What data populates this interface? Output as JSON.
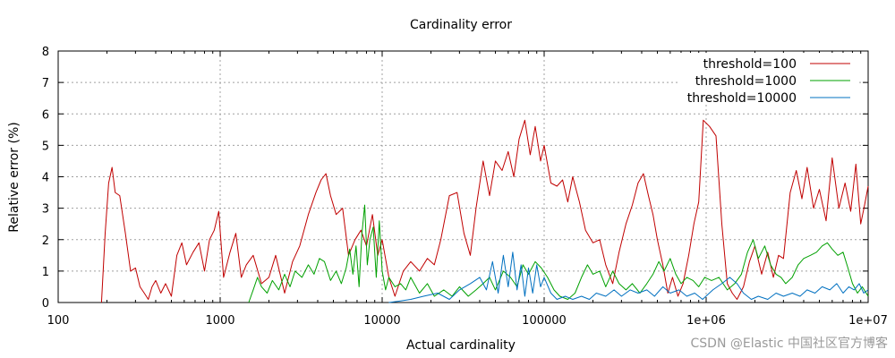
{
  "chart_data": {
    "type": "line",
    "title": "Cardinality error",
    "xlabel": "Actual cardinality",
    "ylabel": "Relative error (%)",
    "xscale": "log",
    "xlim": [
      100,
      10000000
    ],
    "ylim": [
      0,
      8
    ],
    "xticks": [
      100,
      1000,
      10000,
      100000,
      1000000,
      10000000
    ],
    "xtick_labels": [
      "100",
      "1000",
      "10000",
      "100000",
      "1e+06",
      "1e+07"
    ],
    "yticks": [
      0,
      1,
      2,
      3,
      4,
      5,
      6,
      7,
      8
    ],
    "grid": true,
    "legend_position": "top-right",
    "series": [
      {
        "name": "threshold=100",
        "color": "#c00000",
        "points": [
          [
            185,
            0
          ],
          [
            195,
            2.2
          ],
          [
            205,
            3.8
          ],
          [
            215,
            4.3
          ],
          [
            225,
            3.5
          ],
          [
            240,
            3.4
          ],
          [
            260,
            2.2
          ],
          [
            280,
            1.0
          ],
          [
            300,
            1.1
          ],
          [
            320,
            0.5
          ],
          [
            340,
            0.3
          ],
          [
            360,
            0.1
          ],
          [
            380,
            0.5
          ],
          [
            400,
            0.7
          ],
          [
            430,
            0.3
          ],
          [
            460,
            0.6
          ],
          [
            500,
            0.2
          ],
          [
            540,
            1.5
          ],
          [
            580,
            1.9
          ],
          [
            620,
            1.2
          ],
          [
            680,
            1.6
          ],
          [
            740,
            1.9
          ],
          [
            800,
            1.0
          ],
          [
            860,
            2.0
          ],
          [
            920,
            2.3
          ],
          [
            980,
            2.9
          ],
          [
            1050,
            0.8
          ],
          [
            1150,
            1.6
          ],
          [
            1250,
            2.2
          ],
          [
            1350,
            0.8
          ],
          [
            1450,
            1.2
          ],
          [
            1600,
            1.5
          ],
          [
            1800,
            0.6
          ],
          [
            2000,
            0.8
          ],
          [
            2200,
            1.5
          ],
          [
            2500,
            0.3
          ],
          [
            2800,
            1.3
          ],
          [
            3100,
            1.8
          ],
          [
            3500,
            2.8
          ],
          [
            3900,
            3.5
          ],
          [
            4200,
            3.9
          ],
          [
            4500,
            4.1
          ],
          [
            4800,
            3.4
          ],
          [
            5200,
            2.8
          ],
          [
            5700,
            3.0
          ],
          [
            6200,
            1.5
          ],
          [
            6800,
            2.0
          ],
          [
            7400,
            2.3
          ],
          [
            8000,
            1.8
          ],
          [
            8700,
            2.8
          ],
          [
            9400,
            1.5
          ],
          [
            10000,
            2.0
          ],
          [
            11000,
            0.8
          ],
          [
            12000,
            0.2
          ],
          [
            13500,
            1.0
          ],
          [
            15000,
            1.3
          ],
          [
            17000,
            1.0
          ],
          [
            19000,
            1.4
          ],
          [
            21000,
            1.2
          ],
          [
            23000,
            2.0
          ],
          [
            26000,
            3.4
          ],
          [
            29000,
            3.5
          ],
          [
            32000,
            2.2
          ],
          [
            35000,
            1.5
          ],
          [
            38000,
            3.0
          ],
          [
            42000,
            4.5
          ],
          [
            46000,
            3.4
          ],
          [
            50000,
            4.5
          ],
          [
            55000,
            4.2
          ],
          [
            60000,
            4.8
          ],
          [
            65000,
            4.0
          ],
          [
            70000,
            5.2
          ],
          [
            76000,
            5.8
          ],
          [
            82000,
            4.7
          ],
          [
            88000,
            5.6
          ],
          [
            95000,
            4.5
          ],
          [
            100000,
            5.0
          ],
          [
            110000,
            3.8
          ],
          [
            120000,
            3.7
          ],
          [
            130000,
            3.9
          ],
          [
            140000,
            3.2
          ],
          [
            150000,
            4.0
          ],
          [
            165000,
            3.2
          ],
          [
            180000,
            2.3
          ],
          [
            200000,
            1.9
          ],
          [
            220000,
            2.0
          ],
          [
            240000,
            1.2
          ],
          [
            265000,
            0.6
          ],
          [
            290000,
            1.6
          ],
          [
            320000,
            2.5
          ],
          [
            350000,
            3.1
          ],
          [
            380000,
            3.8
          ],
          [
            410000,
            4.1
          ],
          [
            440000,
            3.4
          ],
          [
            470000,
            2.8
          ],
          [
            500000,
            2.0
          ],
          [
            540000,
            1.2
          ],
          [
            580000,
            0.3
          ],
          [
            620000,
            0.8
          ],
          [
            670000,
            0.2
          ],
          [
            720000,
            0.6
          ],
          [
            780000,
            1.5
          ],
          [
            840000,
            2.5
          ],
          [
            900000,
            3.2
          ],
          [
            960000,
            5.8
          ],
          [
            1050000,
            5.6
          ],
          [
            1150000,
            5.3
          ],
          [
            1250000,
            2.5
          ],
          [
            1350000,
            0.6
          ],
          [
            1450000,
            0.3
          ],
          [
            1550000,
            0.1
          ],
          [
            1700000,
            0.5
          ],
          [
            1850000,
            1.3
          ],
          [
            2000000,
            1.8
          ],
          [
            2200000,
            0.9
          ],
          [
            2400000,
            1.6
          ],
          [
            2600000,
            0.8
          ],
          [
            2800000,
            1.5
          ],
          [
            3000000,
            1.4
          ],
          [
            3300000,
            3.5
          ],
          [
            3600000,
            4.2
          ],
          [
            3900000,
            3.3
          ],
          [
            4200000,
            4.3
          ],
          [
            4600000,
            3.0
          ],
          [
            5000000,
            3.6
          ],
          [
            5500000,
            2.6
          ],
          [
            6000000,
            4.6
          ],
          [
            6600000,
            3.0
          ],
          [
            7200000,
            3.8
          ],
          [
            7800000,
            2.9
          ],
          [
            8400000,
            4.4
          ],
          [
            9000000,
            2.5
          ],
          [
            9500000,
            3.1
          ],
          [
            10000000,
            3.7
          ]
        ]
      },
      {
        "name": "threshold=1000",
        "color": "#00a000",
        "points": [
          [
            1500,
            0
          ],
          [
            1600,
            0.4
          ],
          [
            1700,
            0.8
          ],
          [
            1800,
            0.5
          ],
          [
            1950,
            0.3
          ],
          [
            2100,
            0.7
          ],
          [
            2300,
            0.4
          ],
          [
            2500,
            0.9
          ],
          [
            2700,
            0.5
          ],
          [
            2900,
            1.0
          ],
          [
            3200,
            0.8
          ],
          [
            3500,
            1.2
          ],
          [
            3800,
            0.9
          ],
          [
            4100,
            1.4
          ],
          [
            4400,
            1.3
          ],
          [
            4800,
            0.7
          ],
          [
            5200,
            1.0
          ],
          [
            5600,
            0.6
          ],
          [
            6000,
            1.1
          ],
          [
            6300,
            1.7
          ],
          [
            6600,
            0.9
          ],
          [
            6900,
            1.8
          ],
          [
            7200,
            0.5
          ],
          [
            7500,
            2.2
          ],
          [
            7800,
            3.1
          ],
          [
            8100,
            1.2
          ],
          [
            8400,
            2.0
          ],
          [
            8800,
            2.4
          ],
          [
            9200,
            0.8
          ],
          [
            9600,
            2.6
          ],
          [
            10000,
            1.0
          ],
          [
            10500,
            0.4
          ],
          [
            11000,
            0.8
          ],
          [
            12000,
            0.5
          ],
          [
            13000,
            0.6
          ],
          [
            14000,
            0.4
          ],
          [
            15000,
            0.8
          ],
          [
            17000,
            0.3
          ],
          [
            19000,
            0.6
          ],
          [
            21000,
            0.2
          ],
          [
            24000,
            0.4
          ],
          [
            27000,
            0.2
          ],
          [
            30000,
            0.5
          ],
          [
            34000,
            0.2
          ],
          [
            38000,
            0.4
          ],
          [
            42000,
            0.6
          ],
          [
            46000,
            0.8
          ],
          [
            50000,
            0.4
          ],
          [
            56000,
            1.0
          ],
          [
            62000,
            0.8
          ],
          [
            68000,
            0.5
          ],
          [
            74000,
            1.2
          ],
          [
            80000,
            0.9
          ],
          [
            88000,
            1.3
          ],
          [
            96000,
            1.1
          ],
          [
            105000,
            0.8
          ],
          [
            115000,
            0.4
          ],
          [
            125000,
            0.2
          ],
          [
            140000,
            0.1
          ],
          [
            155000,
            0.3
          ],
          [
            170000,
            0.8
          ],
          [
            185000,
            1.2
          ],
          [
            200000,
            0.9
          ],
          [
            220000,
            1.0
          ],
          [
            240000,
            0.5
          ],
          [
            265000,
            1.0
          ],
          [
            290000,
            0.6
          ],
          [
            320000,
            0.4
          ],
          [
            350000,
            0.6
          ],
          [
            390000,
            0.3
          ],
          [
            430000,
            0.6
          ],
          [
            470000,
            0.9
          ],
          [
            510000,
            1.3
          ],
          [
            550000,
            1.0
          ],
          [
            600000,
            1.4
          ],
          [
            650000,
            0.9
          ],
          [
            700000,
            0.6
          ],
          [
            760000,
            0.8
          ],
          [
            830000,
            0.7
          ],
          [
            900000,
            0.5
          ],
          [
            980000,
            0.8
          ],
          [
            1080000,
            0.7
          ],
          [
            1200000,
            0.8
          ],
          [
            1350000,
            0.4
          ],
          [
            1500000,
            0.6
          ],
          [
            1650000,
            0.9
          ],
          [
            1800000,
            1.6
          ],
          [
            1950000,
            2.0
          ],
          [
            2100000,
            1.4
          ],
          [
            2300000,
            1.8
          ],
          [
            2500000,
            1.2
          ],
          [
            2700000,
            0.9
          ],
          [
            2900000,
            0.8
          ],
          [
            3100000,
            0.6
          ],
          [
            3400000,
            0.8
          ],
          [
            3700000,
            1.2
          ],
          [
            4000000,
            1.4
          ],
          [
            4400000,
            1.5
          ],
          [
            4800000,
            1.6
          ],
          [
            5200000,
            1.8
          ],
          [
            5600000,
            1.9
          ],
          [
            6000000,
            1.7
          ],
          [
            6500000,
            1.5
          ],
          [
            7000000,
            1.6
          ],
          [
            7500000,
            1.1
          ],
          [
            8000000,
            0.6
          ],
          [
            8600000,
            0.3
          ],
          [
            9200000,
            0.5
          ],
          [
            10000000,
            0.2
          ]
        ]
      },
      {
        "name": "threshold=10000",
        "color": "#0070c0",
        "points": [
          [
            11000,
            0
          ],
          [
            13000,
            0.05
          ],
          [
            15000,
            0.1
          ],
          [
            18000,
            0.2
          ],
          [
            22000,
            0.3
          ],
          [
            26000,
            0.1
          ],
          [
            30000,
            0.4
          ],
          [
            35000,
            0.6
          ],
          [
            40000,
            0.8
          ],
          [
            44000,
            0.4
          ],
          [
            48000,
            1.3
          ],
          [
            52000,
            0.3
          ],
          [
            56000,
            1.5
          ],
          [
            60000,
            0.5
          ],
          [
            64000,
            1.6
          ],
          [
            68000,
            0.4
          ],
          [
            72000,
            1.2
          ],
          [
            76000,
            0.2
          ],
          [
            80000,
            1.1
          ],
          [
            85000,
            0.3
          ],
          [
            90000,
            1.2
          ],
          [
            95000,
            0.5
          ],
          [
            100000,
            0.8
          ],
          [
            110000,
            0.3
          ],
          [
            120000,
            0.1
          ],
          [
            135000,
            0.2
          ],
          [
            150000,
            0.1
          ],
          [
            170000,
            0.2
          ],
          [
            190000,
            0.1
          ],
          [
            210000,
            0.3
          ],
          [
            240000,
            0.2
          ],
          [
            270000,
            0.4
          ],
          [
            300000,
            0.2
          ],
          [
            340000,
            0.4
          ],
          [
            380000,
            0.3
          ],
          [
            430000,
            0.4
          ],
          [
            480000,
            0.2
          ],
          [
            540000,
            0.5
          ],
          [
            600000,
            0.3
          ],
          [
            680000,
            0.4
          ],
          [
            760000,
            0.2
          ],
          [
            850000,
            0.3
          ],
          [
            950000,
            0.1
          ],
          [
            1100000,
            0.4
          ],
          [
            1250000,
            0.6
          ],
          [
            1400000,
            0.8
          ],
          [
            1550000,
            0.6
          ],
          [
            1700000,
            0.3
          ],
          [
            1900000,
            0.1
          ],
          [
            2100000,
            0.2
          ],
          [
            2400000,
            0.1
          ],
          [
            2700000,
            0.3
          ],
          [
            3000000,
            0.2
          ],
          [
            3400000,
            0.3
          ],
          [
            3800000,
            0.2
          ],
          [
            4200000,
            0.4
          ],
          [
            4700000,
            0.3
          ],
          [
            5200000,
            0.5
          ],
          [
            5800000,
            0.4
          ],
          [
            6400000,
            0.6
          ],
          [
            7000000,
            0.3
          ],
          [
            7600000,
            0.5
          ],
          [
            8200000,
            0.4
          ],
          [
            8800000,
            0.6
          ],
          [
            9400000,
            0.3
          ],
          [
            10000000,
            0.4
          ]
        ]
      }
    ]
  },
  "watermark": "CSDN @Elastic 中国社区官方博客"
}
